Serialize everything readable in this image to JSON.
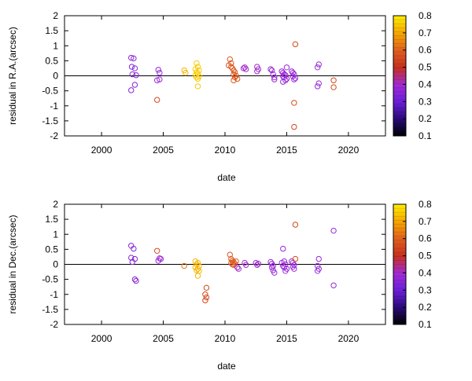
{
  "chart_data": [
    {
      "type": "scatter",
      "title": "",
      "xlabel": "date",
      "ylabel": "residual in R.A.(arcsec)",
      "xlim": [
        1997,
        2023
      ],
      "ylim": [
        -2,
        2
      ],
      "x_ticks": [
        "2000",
        "2005",
        "2010",
        "2015",
        "2020"
      ],
      "y_ticks": [
        "2",
        "1.5",
        "1",
        "0.5",
        "0",
        "-0.5",
        "-1",
        "-1.5",
        "-2"
      ],
      "zero_line": true,
      "colorbar": {
        "range": [
          0.1,
          0.8
        ],
        "ticks": [
          "0.8",
          "0.7",
          "0.6",
          "0.5",
          "0.4",
          "0.3",
          "0.2",
          "0.1"
        ]
      },
      "points": [
        {
          "x": 2002.4,
          "y": 0.6,
          "c": 0.35
        },
        {
          "x": 2002.6,
          "y": 0.58,
          "c": 0.35
        },
        {
          "x": 2002.45,
          "y": 0.3,
          "c": 0.35
        },
        {
          "x": 2002.7,
          "y": 0.25,
          "c": 0.35
        },
        {
          "x": 2002.5,
          "y": 0.05,
          "c": 0.35
        },
        {
          "x": 2002.8,
          "y": 0.02,
          "c": 0.35
        },
        {
          "x": 2002.7,
          "y": -0.3,
          "c": 0.35
        },
        {
          "x": 2002.4,
          "y": -0.48,
          "c": 0.35
        },
        {
          "x": 2004.6,
          "y": 0.2,
          "c": 0.38
        },
        {
          "x": 2004.7,
          "y": 0.1,
          "c": 0.38
        },
        {
          "x": 2004.5,
          "y": -0.15,
          "c": 0.38
        },
        {
          "x": 2004.7,
          "y": -0.12,
          "c": 0.38
        },
        {
          "x": 2004.5,
          "y": -0.8,
          "c": 0.55
        },
        {
          "x": 2006.7,
          "y": 0.18,
          "c": 0.72
        },
        {
          "x": 2006.8,
          "y": 0.1,
          "c": 0.72
        },
        {
          "x": 2007.7,
          "y": 0.42,
          "c": 0.75
        },
        {
          "x": 2007.8,
          "y": 0.3,
          "c": 0.75
        },
        {
          "x": 2007.6,
          "y": 0.22,
          "c": 0.75
        },
        {
          "x": 2007.9,
          "y": 0.18,
          "c": 0.75
        },
        {
          "x": 2007.7,
          "y": 0.12,
          "c": 0.75
        },
        {
          "x": 2007.8,
          "y": 0.08,
          "c": 0.75
        },
        {
          "x": 2007.6,
          "y": 0.02,
          "c": 0.75
        },
        {
          "x": 2007.9,
          "y": -0.02,
          "c": 0.75
        },
        {
          "x": 2007.7,
          "y": -0.05,
          "c": 0.75
        },
        {
          "x": 2007.8,
          "y": -0.1,
          "c": 0.75
        },
        {
          "x": 2007.8,
          "y": -0.35,
          "c": 0.75
        },
        {
          "x": 2010.4,
          "y": 0.55,
          "c": 0.58
        },
        {
          "x": 2010.5,
          "y": 0.42,
          "c": 0.58
        },
        {
          "x": 2010.3,
          "y": 0.35,
          "c": 0.58
        },
        {
          "x": 2010.5,
          "y": 0.3,
          "c": 0.58
        },
        {
          "x": 2010.6,
          "y": 0.25,
          "c": 0.58
        },
        {
          "x": 2010.7,
          "y": 0.18,
          "c": 0.58
        },
        {
          "x": 2010.8,
          "y": 0.12,
          "c": 0.58
        },
        {
          "x": 2010.7,
          "y": 0.05,
          "c": 0.58
        },
        {
          "x": 2010.9,
          "y": 0.0,
          "c": 0.58
        },
        {
          "x": 2010.8,
          "y": -0.05,
          "c": 0.58
        },
        {
          "x": 2011.0,
          "y": -0.1,
          "c": 0.58
        },
        {
          "x": 2010.7,
          "y": -0.15,
          "c": 0.58
        },
        {
          "x": 2011.6,
          "y": 0.28,
          "c": 0.4
        },
        {
          "x": 2011.7,
          "y": 0.22,
          "c": 0.4
        },
        {
          "x": 2011.5,
          "y": 0.25,
          "c": 0.4
        },
        {
          "x": 2012.6,
          "y": 0.3,
          "c": 0.4
        },
        {
          "x": 2012.7,
          "y": 0.22,
          "c": 0.4
        },
        {
          "x": 2012.6,
          "y": 0.15,
          "c": 0.4
        },
        {
          "x": 2013.7,
          "y": 0.22,
          "c": 0.38
        },
        {
          "x": 2013.8,
          "y": 0.18,
          "c": 0.38
        },
        {
          "x": 2013.9,
          "y": 0.05,
          "c": 0.38
        },
        {
          "x": 2014.0,
          "y": -0.05,
          "c": 0.38
        },
        {
          "x": 2014.0,
          "y": -0.12,
          "c": 0.38
        },
        {
          "x": 2014.6,
          "y": 0.15,
          "c": 0.38
        },
        {
          "x": 2014.7,
          "y": 0.1,
          "c": 0.38
        },
        {
          "x": 2014.8,
          "y": 0.05,
          "c": 0.38
        },
        {
          "x": 2014.9,
          "y": 0.02,
          "c": 0.38
        },
        {
          "x": 2014.7,
          "y": -0.02,
          "c": 0.38
        },
        {
          "x": 2014.8,
          "y": -0.05,
          "c": 0.38
        },
        {
          "x": 2015.0,
          "y": -0.1,
          "c": 0.38
        },
        {
          "x": 2014.9,
          "y": -0.15,
          "c": 0.38
        },
        {
          "x": 2014.7,
          "y": -0.2,
          "c": 0.38
        },
        {
          "x": 2015.0,
          "y": 0.28,
          "c": 0.38
        },
        {
          "x": 2015.4,
          "y": 0.15,
          "c": 0.38
        },
        {
          "x": 2015.5,
          "y": 0.1,
          "c": 0.38
        },
        {
          "x": 2015.6,
          "y": 0.05,
          "c": 0.38
        },
        {
          "x": 2015.5,
          "y": -0.02,
          "c": 0.38
        },
        {
          "x": 2015.7,
          "y": -0.08,
          "c": 0.38
        },
        {
          "x": 2015.6,
          "y": -0.12,
          "c": 0.38
        },
        {
          "x": 2015.7,
          "y": 1.05,
          "c": 0.55
        },
        {
          "x": 2015.6,
          "y": -0.9,
          "c": 0.55
        },
        {
          "x": 2015.6,
          "y": -1.7,
          "c": 0.55
        },
        {
          "x": 2017.6,
          "y": 0.38,
          "c": 0.38
        },
        {
          "x": 2017.5,
          "y": 0.28,
          "c": 0.38
        },
        {
          "x": 2017.6,
          "y": -0.25,
          "c": 0.38
        },
        {
          "x": 2017.5,
          "y": -0.35,
          "c": 0.38
        },
        {
          "x": 2018.8,
          "y": -0.15,
          "c": 0.55
        },
        {
          "x": 2018.8,
          "y": -0.38,
          "c": 0.55
        }
      ]
    },
    {
      "type": "scatter",
      "title": "",
      "xlabel": "date",
      "ylabel": "residual in Dec.(arcsec)",
      "xlim": [
        1997,
        2023
      ],
      "ylim": [
        -2,
        2
      ],
      "x_ticks": [
        "2000",
        "2005",
        "2010",
        "2015",
        "2020"
      ],
      "y_ticks": [
        "2",
        "1.5",
        "1",
        "0.5",
        "0",
        "-0.5",
        "-1",
        "-1.5",
        "-2"
      ],
      "zero_line": true,
      "colorbar": {
        "range": [
          0.1,
          0.8
        ],
        "ticks": [
          "0.8",
          "0.7",
          "0.6",
          "0.5",
          "0.4",
          "0.3",
          "0.2",
          "0.1"
        ]
      },
      "points": [
        {
          "x": 2002.4,
          "y": 0.62,
          "c": 0.35
        },
        {
          "x": 2002.6,
          "y": 0.52,
          "c": 0.35
        },
        {
          "x": 2002.4,
          "y": 0.22,
          "c": 0.35
        },
        {
          "x": 2002.7,
          "y": 0.18,
          "c": 0.35
        },
        {
          "x": 2002.5,
          "y": 0.08,
          "c": 0.35
        },
        {
          "x": 2002.7,
          "y": -0.5,
          "c": 0.35
        },
        {
          "x": 2002.8,
          "y": -0.55,
          "c": 0.35
        },
        {
          "x": 2004.5,
          "y": 0.45,
          "c": 0.55
        },
        {
          "x": 2004.7,
          "y": 0.2,
          "c": 0.38
        },
        {
          "x": 2004.6,
          "y": 0.12,
          "c": 0.38
        },
        {
          "x": 2004.8,
          "y": 0.18,
          "c": 0.38
        },
        {
          "x": 2006.7,
          "y": -0.05,
          "c": 0.62
        },
        {
          "x": 2007.6,
          "y": 0.1,
          "c": 0.72
        },
        {
          "x": 2007.8,
          "y": 0.05,
          "c": 0.72
        },
        {
          "x": 2007.7,
          "y": 0.0,
          "c": 0.72
        },
        {
          "x": 2007.9,
          "y": -0.05,
          "c": 0.72
        },
        {
          "x": 2007.6,
          "y": -0.1,
          "c": 0.72
        },
        {
          "x": 2007.8,
          "y": -0.15,
          "c": 0.72
        },
        {
          "x": 2007.7,
          "y": -0.2,
          "c": 0.72
        },
        {
          "x": 2007.9,
          "y": -0.22,
          "c": 0.72
        },
        {
          "x": 2007.8,
          "y": -0.38,
          "c": 0.72
        },
        {
          "x": 2008.5,
          "y": -0.78,
          "c": 0.55
        },
        {
          "x": 2008.4,
          "y": -1.0,
          "c": 0.55
        },
        {
          "x": 2008.5,
          "y": -1.1,
          "c": 0.55
        },
        {
          "x": 2008.4,
          "y": -1.2,
          "c": 0.55
        },
        {
          "x": 2010.4,
          "y": 0.32,
          "c": 0.58
        },
        {
          "x": 2010.5,
          "y": 0.18,
          "c": 0.58
        },
        {
          "x": 2010.6,
          "y": 0.12,
          "c": 0.58
        },
        {
          "x": 2010.7,
          "y": 0.08,
          "c": 0.58
        },
        {
          "x": 2010.5,
          "y": 0.05,
          "c": 0.58
        },
        {
          "x": 2010.8,
          "y": 0.02,
          "c": 0.58
        },
        {
          "x": 2010.9,
          "y": 0.1,
          "c": 0.58
        },
        {
          "x": 2010.7,
          "y": -0.02,
          "c": 0.58
        },
        {
          "x": 2010.6,
          "y": 0.0,
          "c": 0.58
        },
        {
          "x": 2011.0,
          "y": -0.1,
          "c": 0.4
        },
        {
          "x": 2011.1,
          "y": -0.15,
          "c": 0.4
        },
        {
          "x": 2011.6,
          "y": 0.05,
          "c": 0.4
        },
        {
          "x": 2011.7,
          "y": -0.02,
          "c": 0.4
        },
        {
          "x": 2012.5,
          "y": 0.05,
          "c": 0.4
        },
        {
          "x": 2012.6,
          "y": -0.02,
          "c": 0.4
        },
        {
          "x": 2012.7,
          "y": 0.02,
          "c": 0.4
        },
        {
          "x": 2013.7,
          "y": 0.08,
          "c": 0.38
        },
        {
          "x": 2013.8,
          "y": 0.02,
          "c": 0.38
        },
        {
          "x": 2013.9,
          "y": -0.05,
          "c": 0.38
        },
        {
          "x": 2013.8,
          "y": -0.1,
          "c": 0.38
        },
        {
          "x": 2013.9,
          "y": -0.2,
          "c": 0.38
        },
        {
          "x": 2014.0,
          "y": -0.28,
          "c": 0.38
        },
        {
          "x": 2014.7,
          "y": 0.52,
          "c": 0.38
        },
        {
          "x": 2014.8,
          "y": 0.1,
          "c": 0.38
        },
        {
          "x": 2014.6,
          "y": 0.05,
          "c": 0.38
        },
        {
          "x": 2014.9,
          "y": 0.0,
          "c": 0.38
        },
        {
          "x": 2014.7,
          "y": -0.05,
          "c": 0.38
        },
        {
          "x": 2014.8,
          "y": -0.1,
          "c": 0.38
        },
        {
          "x": 2015.0,
          "y": -0.15,
          "c": 0.38
        },
        {
          "x": 2014.9,
          "y": -0.22,
          "c": 0.38
        },
        {
          "x": 2015.4,
          "y": 0.1,
          "c": 0.38
        },
        {
          "x": 2015.5,
          "y": 0.05,
          "c": 0.38
        },
        {
          "x": 2015.6,
          "y": -0.02,
          "c": 0.38
        },
        {
          "x": 2015.5,
          "y": -0.08,
          "c": 0.38
        },
        {
          "x": 2015.6,
          "y": -0.15,
          "c": 0.38
        },
        {
          "x": 2015.7,
          "y": 0.18,
          "c": 0.55
        },
        {
          "x": 2015.7,
          "y": 1.32,
          "c": 0.55
        },
        {
          "x": 2017.6,
          "y": 0.18,
          "c": 0.38
        },
        {
          "x": 2017.5,
          "y": -0.05,
          "c": 0.38
        },
        {
          "x": 2017.6,
          "y": -0.15,
          "c": 0.38
        },
        {
          "x": 2017.5,
          "y": -0.22,
          "c": 0.38
        },
        {
          "x": 2018.8,
          "y": 1.12,
          "c": 0.38
        },
        {
          "x": 2018.8,
          "y": -0.7,
          "c": 0.38
        }
      ]
    }
  ]
}
